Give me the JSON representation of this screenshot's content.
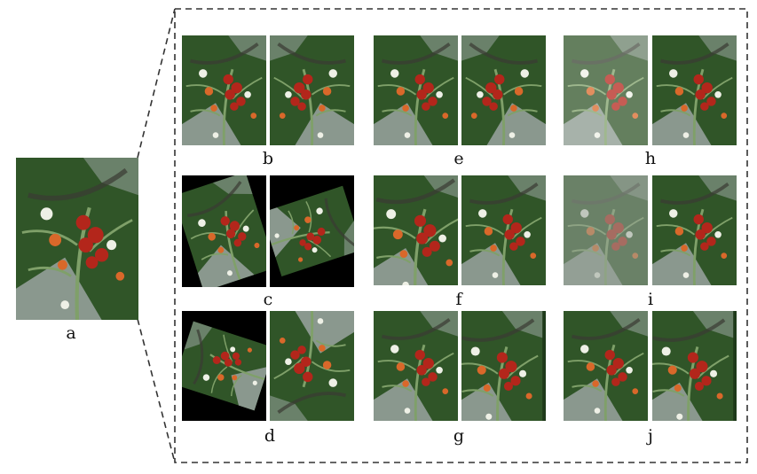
{
  "labels": {
    "a": "a",
    "b": "b",
    "c": "c",
    "d": "d",
    "e": "e",
    "f": "f",
    "g": "g",
    "h": "h",
    "i": "i",
    "j": "j"
  },
  "panels": {
    "a": "original image",
    "b": "flip pair",
    "c": "rotation pair",
    "d": "rotation pair",
    "e": "flip pair",
    "f": "crop pair",
    "g": "shift pair",
    "h": "brightness pair",
    "i": "low-brightness pair",
    "j": "color pair"
  },
  "colors": {
    "foliage_dark": "#1e3a1a",
    "foliage_mid": "#3f6b34",
    "foliage_light": "#7fa069",
    "stem_gray": "#9aa5a0",
    "tomato_red": "#b3261b",
    "tomato_orange": "#d9682a",
    "flower_white": "#eef0e6",
    "frame_dash": "#333333"
  }
}
